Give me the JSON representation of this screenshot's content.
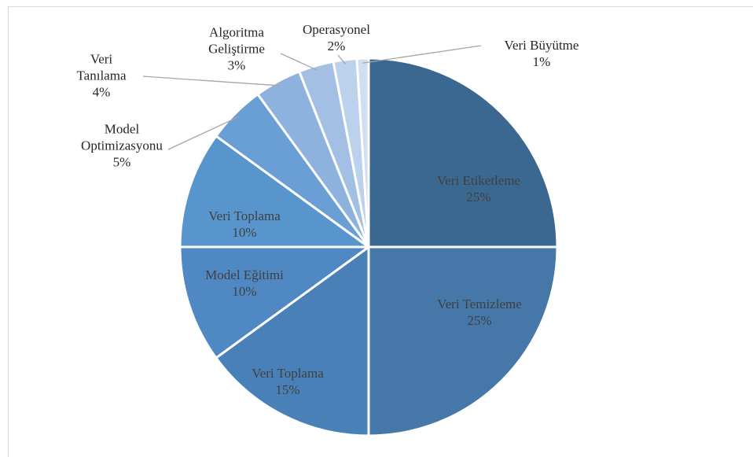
{
  "chart_data": {
    "type": "pie",
    "categories": [
      "Veri Etiketleme",
      "Veri Temizleme",
      "Veri Toplama",
      "Model Eğitimi",
      "Veri Toplama",
      "Model Optimizasyonu",
      "Veri Tanılama",
      "Algoritma Geliştirme",
      "Operasyonel",
      "Veri Büyütme"
    ],
    "values": [
      25,
      25,
      15,
      10,
      10,
      5,
      4,
      3,
      2,
      1
    ],
    "value_labels": [
      "25%",
      "25%",
      "15%",
      "10%",
      "10%",
      "5%",
      "4%",
      "3%",
      "2%",
      "1%"
    ],
    "colors": [
      "#3b6891",
      "#4577a8",
      "#4a80b8",
      "#4f88c2",
      "#5895cc",
      "#6a9fd6",
      "#8db2de",
      "#a3c0e4",
      "#bcd1ec",
      "#d0def1"
    ]
  }
}
